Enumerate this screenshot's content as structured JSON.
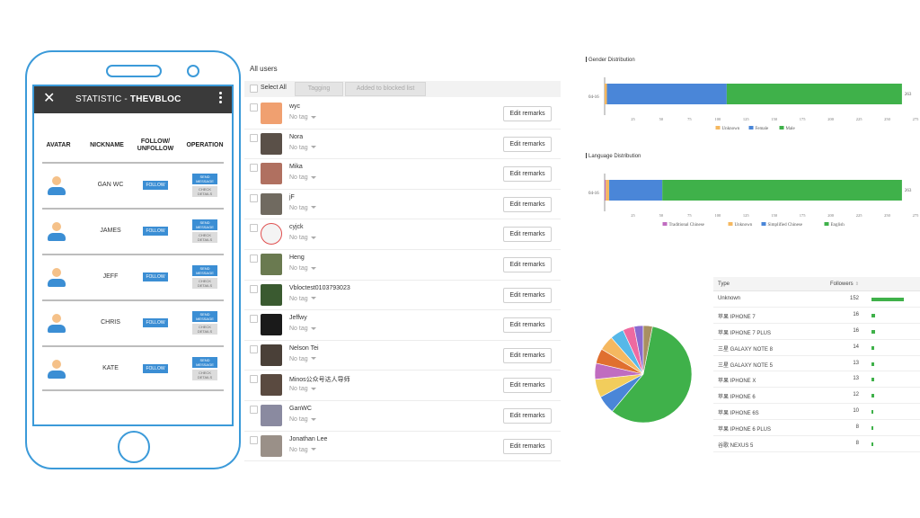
{
  "phone": {
    "title_prefix": "STATISTIC - ",
    "title_brand": "THEVBLOC",
    "columns": {
      "avatar": "AVATAR",
      "nickname": "NICKNAME",
      "follow_line1": "FOLLOW/",
      "follow_line2": "UNFOLLOW",
      "operation": "OPERATION"
    },
    "follow_label": "FOLLOW",
    "send_line1": "SEND",
    "send_line2": "MESSAGE",
    "check_line1": "CHECK",
    "check_line2": "DETAILS",
    "rows": [
      {
        "nickname": "GAN WC"
      },
      {
        "nickname": "JAMES"
      },
      {
        "nickname": "JEFF"
      },
      {
        "nickname": "CHRIS"
      },
      {
        "nickname": "KATE"
      }
    ]
  },
  "users": {
    "heading": "All users",
    "select_all": "Select All",
    "tagging": "Tagging",
    "blocked": "Added to blocked list",
    "no_tag": "No tag",
    "edit_remarks": "Edit remarks",
    "list": [
      {
        "name": "wyc",
        "avatar_color": "#f0a070"
      },
      {
        "name": "Nora",
        "avatar_color": "#5a5048"
      },
      {
        "name": "Mika",
        "avatar_color": "#b07060"
      },
      {
        "name": "jF",
        "avatar_color": "#706a60"
      },
      {
        "name": "cyjck",
        "avatar_color": "#f4f4f4"
      },
      {
        "name": "Heng",
        "avatar_color": "#6a7a50"
      },
      {
        "name": "Vbloctest0103793023",
        "avatar_color": "#3a5a30"
      },
      {
        "name": "Jeffwy",
        "avatar_color": "#1a1a1a"
      },
      {
        "name": "Nelson Tei",
        "avatar_color": "#4a4038"
      },
      {
        "name": "Minos公众号达人导师",
        "avatar_color": "#5a4a40"
      },
      {
        "name": "GanWC",
        "avatar_color": "#8a8aa0"
      },
      {
        "name": "Jonathan Lee",
        "avatar_color": "#9a9088"
      }
    ]
  },
  "gender_chart": {
    "title": "Gender Distribution",
    "category": "04-16",
    "total_label": "263",
    "ticks": [
      "25",
      "50",
      "75",
      "100",
      "125",
      "150",
      "175",
      "200",
      "225",
      "250",
      "275"
    ],
    "legend": [
      "Unknown",
      "Female",
      "Male"
    ]
  },
  "language_chart": {
    "title": "Language Distribution",
    "category": "04-16",
    "total_label": "263",
    "ticks": [
      "25",
      "50",
      "75",
      "100",
      "125",
      "150",
      "175",
      "200",
      "225",
      "250",
      "275"
    ],
    "legend": [
      "Traditional Chinese",
      "Unknown",
      "Simplified Chinese",
      "English"
    ]
  },
  "chart_data": [
    {
      "type": "bar",
      "orientation": "horizontal",
      "stacked": true,
      "title": "Gender Distribution",
      "categories": [
        "04-16"
      ],
      "series": [
        {
          "name": "Unknown",
          "values": [
            2
          ],
          "color": "#f5b860"
        },
        {
          "name": "Female",
          "values": [
            106
          ],
          "color": "#4a86d8"
        },
        {
          "name": "Male",
          "values": [
            155
          ],
          "color": "#3fb14a"
        }
      ],
      "xlim": [
        0,
        275
      ],
      "legend": "bottom"
    },
    {
      "type": "bar",
      "orientation": "horizontal",
      "stacked": true,
      "title": "Language Distribution",
      "categories": [
        "04-16"
      ],
      "series": [
        {
          "name": "Traditional Chinese",
          "values": [
            1
          ],
          "color": "#c06cc0"
        },
        {
          "name": "Unknown",
          "values": [
            3
          ],
          "color": "#f5b860"
        },
        {
          "name": "Simplified Chinese",
          "values": [
            47
          ],
          "color": "#4a86d8"
        },
        {
          "name": "English",
          "values": [
            212
          ],
          "color": "#3fb14a"
        }
      ],
      "xlim": [
        0,
        275
      ],
      "legend": "bottom"
    },
    {
      "type": "pie",
      "values": [
        152,
        16,
        16,
        14,
        13,
        13,
        12,
        10,
        8,
        8
      ],
      "colors": [
        "#3fb14a",
        "#4a86d8",
        "#f2cd5c",
        "#c06cc0",
        "#e07030",
        "#f5b860",
        "#56b8e8",
        "#ee6aa0",
        "#8a6ad0",
        "#a89060"
      ]
    }
  ],
  "device_table": {
    "type_header": "Type",
    "followers_header": "Followers",
    "max": 152,
    "bar_color": "#3fb14a",
    "rows": [
      {
        "type": "Unknown",
        "count": 152
      },
      {
        "type": "苹果 IPHONE 7",
        "count": 16
      },
      {
        "type": "苹果 IPHONE 7 PLUS",
        "count": 16
      },
      {
        "type": "三星 GALAXY NOTE 8",
        "count": 14
      },
      {
        "type": "三星 GALAXY NOTE 5",
        "count": 13
      },
      {
        "type": "苹果 IPHONE X",
        "count": 13
      },
      {
        "type": "苹果 IPHONE 6",
        "count": 12
      },
      {
        "type": "苹果 IPHONE 6S",
        "count": 10
      },
      {
        "type": "苹果 IPHONE 6 PLUS",
        "count": 8
      },
      {
        "type": "谷歌 NEXUS 5",
        "count": 8
      }
    ]
  }
}
